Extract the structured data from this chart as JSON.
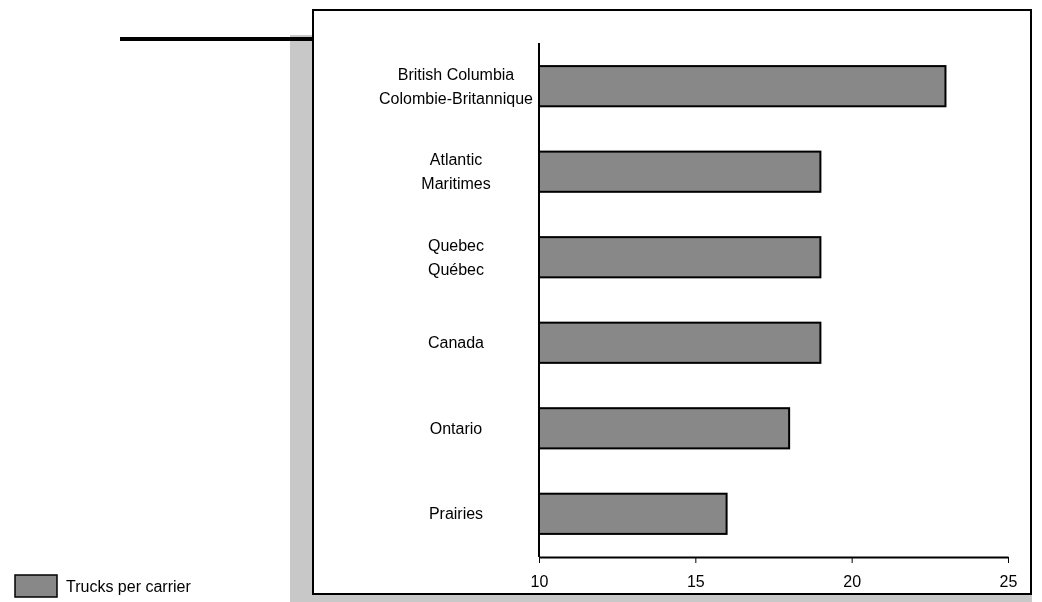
{
  "chart_data": {
    "type": "bar",
    "orientation": "horizontal",
    "categories": [
      "British Columbia\nColombie-Britannique",
      "Atlantic\nMaritimes",
      "Quebec\nQuébec",
      "Canada",
      "Ontario",
      "Prairies"
    ],
    "series": [
      {
        "name": "Trucks per carrier",
        "color": "#888888",
        "values": [
          23,
          19,
          19,
          19,
          18,
          16
        ]
      }
    ],
    "xlim": [
      10,
      25
    ],
    "xticks": [
      10,
      15,
      20,
      25
    ],
    "grid": false,
    "legend": "bottom left"
  }
}
